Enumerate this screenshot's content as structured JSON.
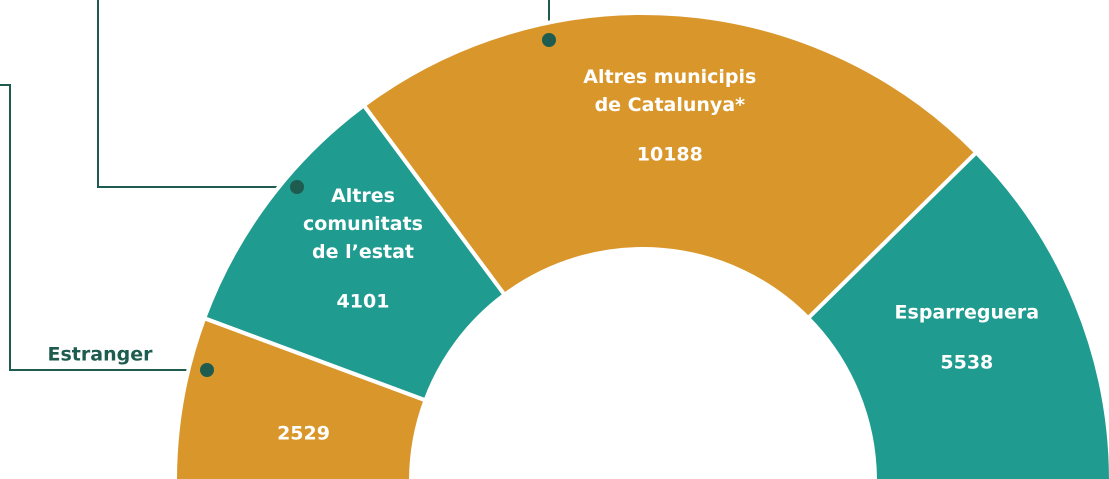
{
  "chart_data": {
    "type": "pie",
    "categories": [
      "Estranger",
      "Altres\ncomunitats\nde l’estat",
      "Altres municipis\nde Catalunya*",
      "Esparreguera"
    ],
    "values": [
      2529,
      4101,
      10188,
      5538
    ],
    "colors": [
      "#d9972b",
      "#1f9b8f",
      "#d9972b",
      "#1f9b8f"
    ]
  }
}
